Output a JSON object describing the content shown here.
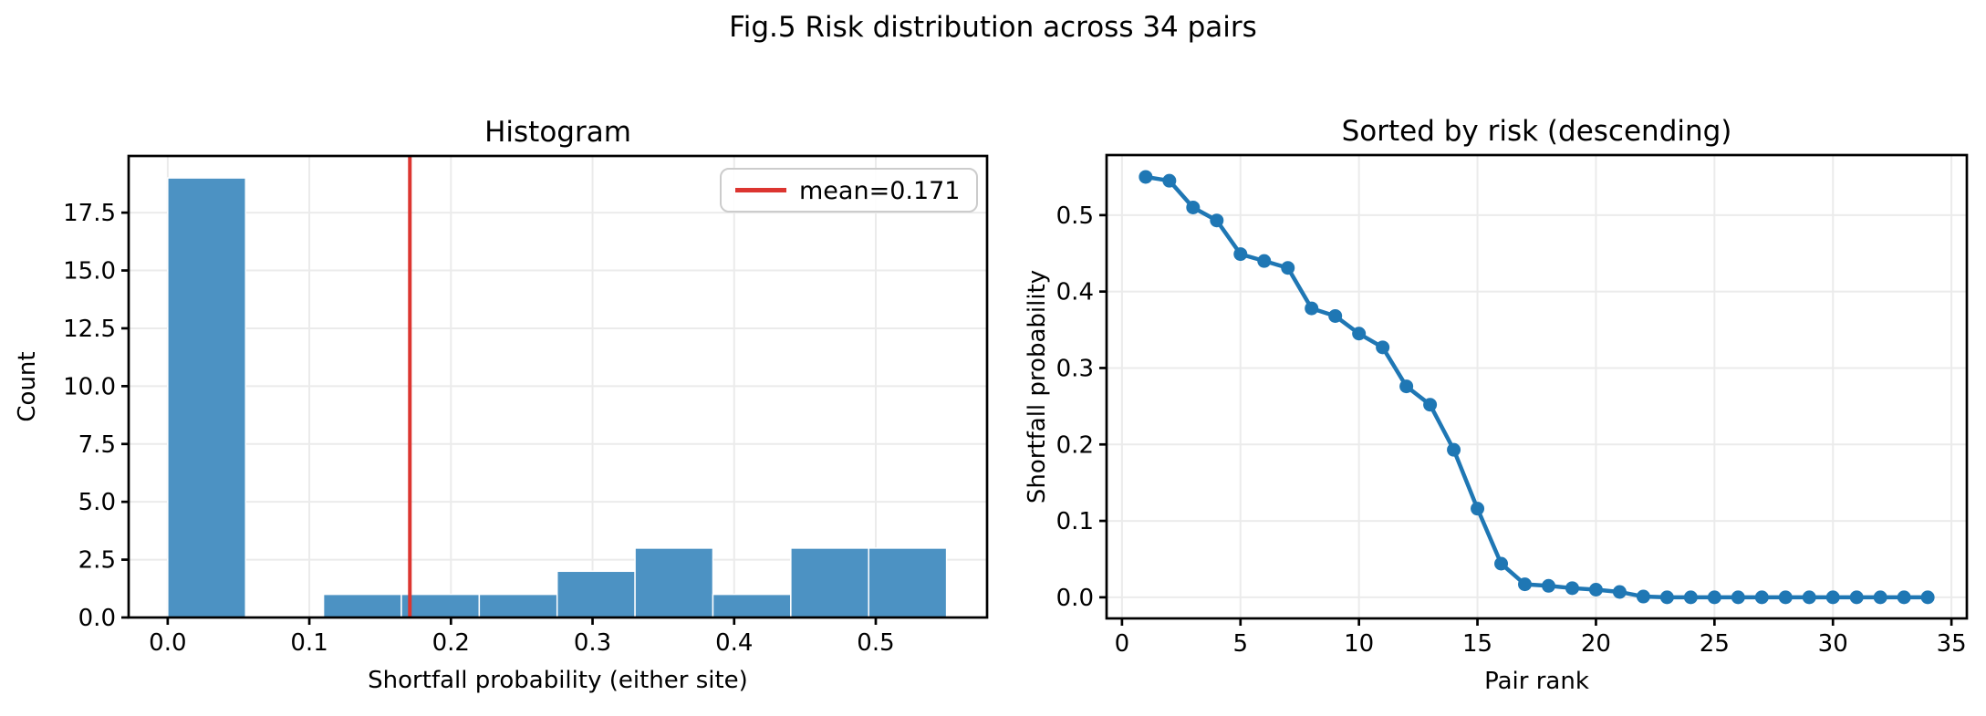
{
  "figure": {
    "title": "Fig.5 Risk distribution across 34 pairs",
    "background": "#ffffff"
  },
  "colors": {
    "bar_fill": "#4c92c3",
    "line": "#1f77b4",
    "mean_line": "#dc3530",
    "grid": "#ebebeb",
    "spine": "#000000",
    "legend_border": "#cccccc",
    "text": "#000000"
  },
  "chart_data": [
    {
      "type": "bar",
      "title": "Histogram",
      "xlabel": "Shortfall probability (either site)",
      "ylabel": "Count",
      "bin_edges": [
        0.0,
        0.055,
        0.11,
        0.165,
        0.22,
        0.275,
        0.33,
        0.385,
        0.44,
        0.495,
        0.55
      ],
      "counts": [
        19,
        0,
        1,
        1,
        1,
        2,
        3,
        1,
        3,
        3
      ],
      "xlim": [
        -0.0276,
        0.5786
      ],
      "ylim": [
        0,
        19.95
      ],
      "xticks": {
        "values": [
          0.0,
          0.1,
          0.2,
          0.3,
          0.4,
          0.5
        ],
        "labels": [
          "0.0",
          "0.1",
          "0.2",
          "0.3",
          "0.4",
          "0.5"
        ]
      },
      "yticks": {
        "values": [
          0.0,
          2.5,
          5.0,
          7.5,
          10.0,
          12.5,
          15.0,
          17.5
        ],
        "labels": [
          "0.0",
          "2.5",
          "5.0",
          "7.5",
          "10.0",
          "12.5",
          "15.0",
          "17.5"
        ]
      },
      "grid": true,
      "bar_color": "#4c92c3",
      "mean_line": {
        "value": 0.171,
        "color": "#dc3530"
      },
      "legend": {
        "position": "upper right",
        "entries": [
          {
            "label": "mean=0.171",
            "color": "#dc3530"
          }
        ]
      }
    },
    {
      "type": "line",
      "title": "Sorted by risk (descending)",
      "xlabel": "Pair rank",
      "ylabel": "Shortfall probability",
      "x": [
        1,
        2,
        3,
        4,
        5,
        6,
        7,
        8,
        9,
        10,
        11,
        12,
        13,
        14,
        15,
        16,
        17,
        18,
        19,
        20,
        21,
        22,
        23,
        24,
        25,
        26,
        27,
        28,
        29,
        30,
        31,
        32,
        33,
        34
      ],
      "y": [
        0.55,
        0.545,
        0.51,
        0.493,
        0.449,
        0.44,
        0.431,
        0.378,
        0.368,
        0.345,
        0.327,
        0.276,
        0.252,
        0.193,
        0.116,
        0.044,
        0.017,
        0.015,
        0.012,
        0.01,
        0.007,
        0.001,
        0.0,
        0.0,
        0.0,
        0.0,
        0.0,
        0.0,
        0.0,
        0.0,
        0.0,
        0.0,
        0.0,
        0.0
      ],
      "xlim": [
        -0.65,
        35.65
      ],
      "ylim": [
        -0.0276,
        0.5786
      ],
      "xticks": {
        "values": [
          0,
          5,
          10,
          15,
          20,
          25,
          30,
          35
        ],
        "labels": [
          "0",
          "5",
          "10",
          "15",
          "20",
          "25",
          "30",
          "35"
        ]
      },
      "yticks": {
        "values": [
          0.0,
          0.1,
          0.2,
          0.3,
          0.4,
          0.5
        ],
        "labels": [
          "0.0",
          "0.1",
          "0.2",
          "0.3",
          "0.4",
          "0.5"
        ]
      },
      "grid": true,
      "line_color": "#1f77b4",
      "marker": "circle"
    }
  ]
}
